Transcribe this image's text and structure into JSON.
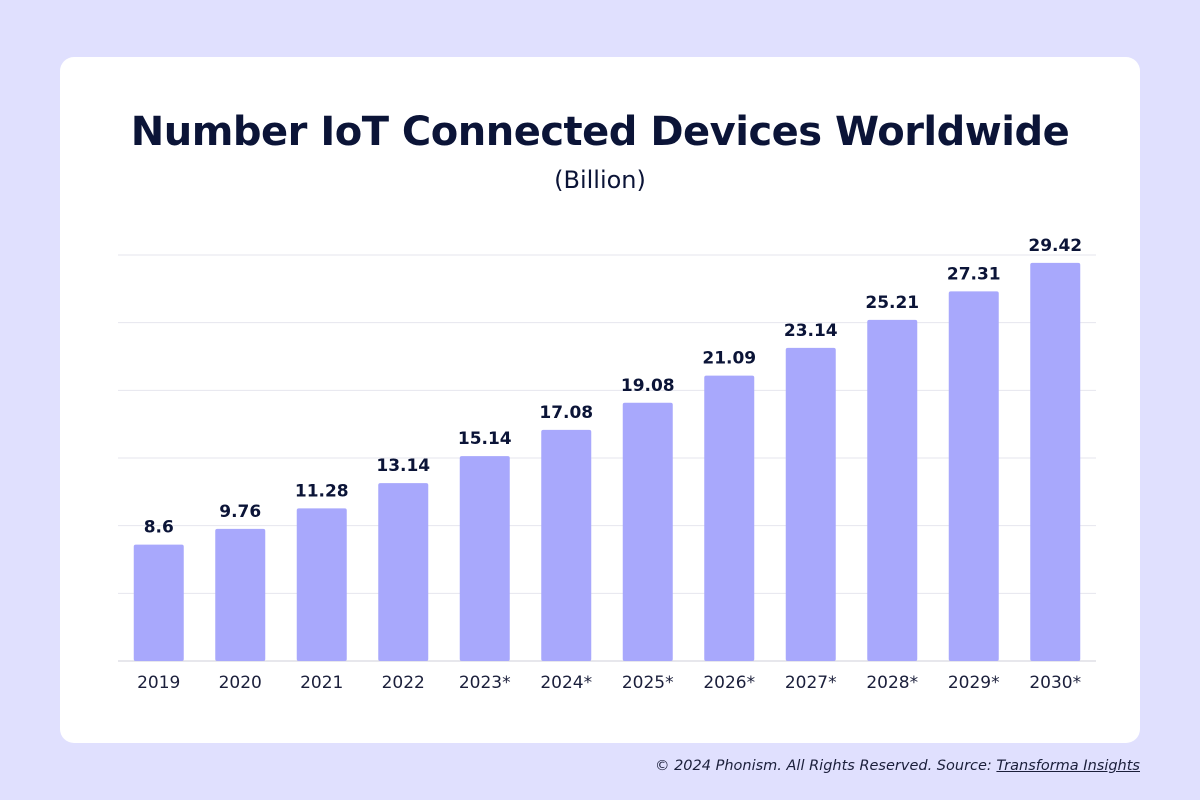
{
  "chart_data": {
    "type": "bar",
    "title": "Number IoT Connected Devices Worldwide",
    "subtitle": "(Billion)",
    "categories": [
      "2019",
      "2020",
      "2021",
      "2022",
      "2023*",
      "2024*",
      "2025*",
      "2026*",
      "2027*",
      "2028*",
      "2029*",
      "2030*"
    ],
    "values": [
      8.6,
      9.76,
      11.28,
      13.14,
      15.14,
      17.08,
      19.08,
      21.09,
      23.14,
      25.21,
      27.31,
      29.42
    ],
    "data_labels": [
      "8.6",
      "9.76",
      "11.28",
      "13.14",
      "15.14",
      "17.08",
      "19.08",
      "21.09",
      "23.14",
      "25.21",
      "27.31",
      "29.42"
    ],
    "ylim": [
      0,
      30
    ],
    "grid": true,
    "bar_color": "#a8a8fc"
  },
  "footer": {
    "copyright": "© 2024 Phonism. All Rights Reserved. Source: ",
    "source_link": "Transforma Insights"
  }
}
